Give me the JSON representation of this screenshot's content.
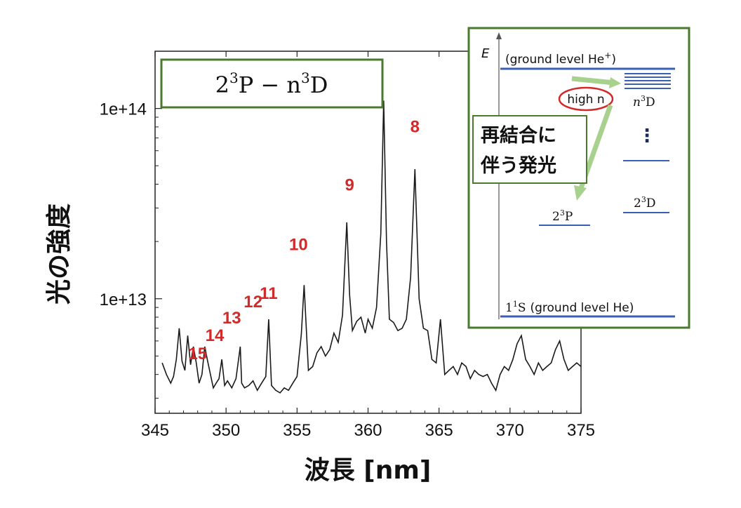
{
  "chart_data": {
    "type": "line",
    "xlabel": "波長 [nm]",
    "ylabel": "光の強度",
    "xlim": [
      345,
      375
    ],
    "ylim_log": [
      2500000000000,
      200000000000000
    ],
    "yscale": "log",
    "x_ticks": [
      345,
      350,
      355,
      360,
      365,
      370,
      375
    ],
    "x_tick_labels": [
      "345",
      "350",
      "355",
      "360",
      "365",
      "370",
      "375"
    ],
    "y_ticks": [
      10000000000000,
      100000000000000
    ],
    "y_tick_labels": [
      "1e+13",
      "1e+14"
    ],
    "x": [
      345.5,
      345.8,
      346.1,
      346.3,
      346.5,
      346.7,
      346.9,
      347.1,
      347.3,
      347.5,
      347.7,
      347.9,
      348.1,
      348.3,
      348.5,
      348.7,
      348.9,
      349.1,
      349.3,
      349.5,
      349.7,
      349.9,
      350.1,
      350.4,
      350.7,
      351.0,
      351.1,
      351.3,
      351.6,
      351.9,
      352.2,
      352.5,
      352.8,
      353.0,
      353.2,
      353.5,
      353.8,
      354.1,
      354.4,
      354.7,
      355.0,
      355.3,
      355.5,
      355.8,
      356.1,
      356.4,
      356.7,
      357.0,
      357.3,
      357.6,
      357.9,
      358.2,
      358.5,
      358.7,
      358.9,
      359.2,
      359.5,
      359.8,
      360.0,
      360.3,
      360.6,
      360.9,
      361.1,
      361.3,
      361.5,
      361.8,
      362.1,
      362.4,
      362.7,
      363.0,
      363.3,
      363.6,
      363.9,
      364.2,
      364.5,
      364.8,
      365.1,
      365.4,
      365.7,
      366.0,
      366.3,
      366.6,
      366.9,
      367.2,
      367.5,
      367.8,
      368.1,
      368.4,
      368.7,
      369.0,
      369.3,
      369.6,
      369.9,
      370.2,
      370.5,
      370.8,
      371.1,
      371.4,
      371.7,
      372.0,
      372.3,
      372.6,
      372.9,
      373.2,
      373.5,
      373.8,
      374.1,
      374.4,
      374.7,
      375.0
    ],
    "y": [
      4600000000000.0,
      4000000000000.0,
      3600000000000.0,
      3900000000000.0,
      4800000000000.0,
      7000000000000.0,
      4700000000000.0,
      4200000000000.0,
      6400000000000.0,
      4500000000000.0,
      5600000000000.0,
      4600000000000.0,
      3600000000000.0,
      4000000000000.0,
      5600000000000.0,
      4700000000000.0,
      4000000000000.0,
      3400000000000.0,
      3600000000000.0,
      3800000000000.0,
      4800000000000.0,
      3500000000000.0,
      3700000000000.0,
      3400000000000.0,
      3800000000000.0,
      5600000000000.0,
      3600000000000.0,
      3400000000000.0,
      3500000000000.0,
      3700000000000.0,
      3300000000000.0,
      3600000000000.0,
      3900000000000.0,
      7800000000000.0,
      3500000000000.0,
      3300000000000.0,
      3200000000000.0,
      3400000000000.0,
      3300000000000.0,
      3600000000000.0,
      3900000000000.0,
      6500000000000.0,
      11800000000000.0,
      4200000000000.0,
      4400000000000.0,
      5200000000000.0,
      5600000000000.0,
      5000000000000.0,
      5400000000000.0,
      6600000000000.0,
      5900000000000.0,
      8200000000000.0,
      25200000000000.0,
      10500000000000.0,
      6800000000000.0,
      7600000000000.0,
      8000000000000.0,
      6600000000000.0,
      7800000000000.0,
      7000000000000.0,
      9000000000000.0,
      22000000000000.0,
      110000000000000.0,
      20000000000000.0,
      7800000000000.0,
      7500000000000.0,
      6800000000000.0,
      7000000000000.0,
      7800000000000.0,
      13000000000000.0,
      48000000000000.0,
      10000000000000.0,
      7000000000000.0,
      6800000000000.0,
      4800000000000.0,
      4600000000000.0,
      7800000000000.0,
      4000000000000.0,
      4200000000000.0,
      4400000000000.0,
      4000000000000.0,
      4600000000000.0,
      4400000000000.0,
      3800000000000.0,
      4200000000000.0,
      4000000000000.0,
      3900000000000.0,
      4000000000000.0,
      3600000000000.0,
      3300000000000.0,
      4000000000000.0,
      4400000000000.0,
      4200000000000.0,
      4800000000000.0,
      5800000000000.0,
      6400000000000.0,
      4800000000000.0,
      4400000000000.0,
      4000000000000.0,
      4600000000000.0,
      4200000000000.0,
      4400000000000.0,
      4600000000000.0,
      5400000000000.0,
      6000000000000.0,
      4800000000000.0,
      4200000000000.0,
      4400000000000.0,
      4600000000000.0,
      4400000000000.0
    ],
    "peak_labels": [
      {
        "text": "8",
        "x": 363.3,
        "y": 75000000000000.0
      },
      {
        "text": "9",
        "x": 358.7,
        "y": 37000000000000.0
      },
      {
        "text": "10",
        "x": 355.1,
        "y": 18000000000000.0
      },
      {
        "text": "11",
        "x": 353.0,
        "y": 10000000000000.0
      },
      {
        "text": "12",
        "x": 351.9,
        "y": 9000000000000.0
      },
      {
        "text": "13",
        "x": 350.4,
        "y": 7400000000000.0
      },
      {
        "text": "14",
        "x": 349.2,
        "y": 6000000000000.0
      },
      {
        "text": "15",
        "x": 348.0,
        "y": 4800000000000.0
      }
    ],
    "colors": {
      "line": "#1a1a1a",
      "label": "#d12a2a",
      "box_border": "#4a7a2e",
      "level": "#3a5fb5",
      "arrow": "#a9d18e",
      "circle": "#d12a2a"
    }
  },
  "title_box": {
    "base": "2",
    "sup1": "3",
    "mid": "P − n",
    "sup2": "3",
    "end": "D"
  },
  "inset": {
    "axis_label": "E",
    "ion_level": "(ground level He",
    "ion_sup": "+",
    "ion_close": ")",
    "high_n": "high n",
    "n3D": "n",
    "n3D_sup": "3",
    "n3D_end": "D",
    "dots": "⋮",
    "recomb_line1": "再結合に",
    "recomb_line2": "伴う発光",
    "p_level": "2",
    "p_sup": "3",
    "p_end": "P",
    "d_level": "2",
    "d_sup": "3",
    "d_end": "D",
    "ground": "1",
    "ground_sup": "1",
    "ground_end": "S",
    "ground_label": "(ground level He)"
  }
}
